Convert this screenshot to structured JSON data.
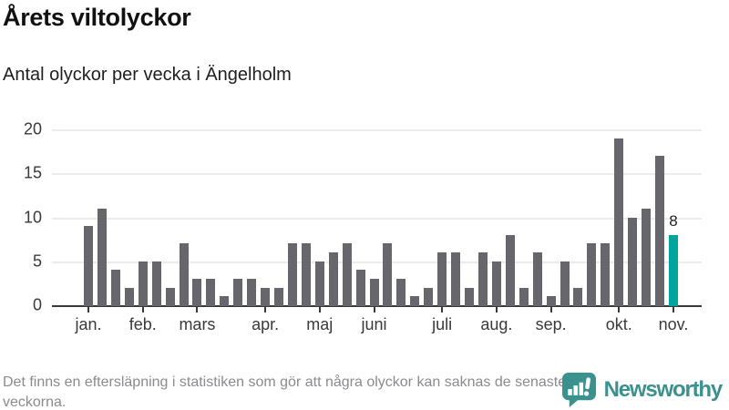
{
  "header": {
    "title": "Årets viltolyckor",
    "subtitle": "Antal olyckor per vecka i Ängelholm"
  },
  "chart_data": {
    "type": "bar",
    "title": "Årets viltolyckor",
    "subtitle": "Antal olyckor per vecka i Ängelholm",
    "values": [
      9,
      11,
      4,
      2,
      5,
      5,
      2,
      7,
      3,
      3,
      1,
      3,
      3,
      2,
      2,
      7,
      7,
      5,
      6,
      7,
      4,
      3,
      7,
      3,
      1,
      2,
      6,
      6,
      2,
      6,
      5,
      8,
      2,
      6,
      1,
      5,
      2,
      7,
      7,
      19,
      10,
      11,
      17,
      8
    ],
    "bar_color": "#66666c",
    "highlight": {
      "index": 43,
      "label": "8",
      "color": "#00a49c"
    },
    "ylim": [
      0,
      20
    ],
    "yticks": [
      0,
      5,
      10,
      15,
      20
    ],
    "grid": "horizontal",
    "month_ticks": [
      {
        "label": "jan.",
        "week": 1
      },
      {
        "label": "feb.",
        "week": 5
      },
      {
        "label": "mars",
        "week": 9
      },
      {
        "label": "apr.",
        "week": 14
      },
      {
        "label": "maj",
        "week": 18
      },
      {
        "label": "juni",
        "week": 22
      },
      {
        "label": "juli",
        "week": 27
      },
      {
        "label": "aug.",
        "week": 31
      },
      {
        "label": "sep.",
        "week": 35
      },
      {
        "label": "okt.",
        "week": 40
      },
      {
        "label": "nov.",
        "week": 44
      }
    ]
  },
  "footer": {
    "note": "Det finns en eftersläpning i statistiken som gör att några olyckor kan saknas de senaste veckorna."
  },
  "logo": {
    "name": "Newsworthy",
    "icon": "newsworthy-chart-bubble-icon",
    "color": "#3a918e"
  }
}
